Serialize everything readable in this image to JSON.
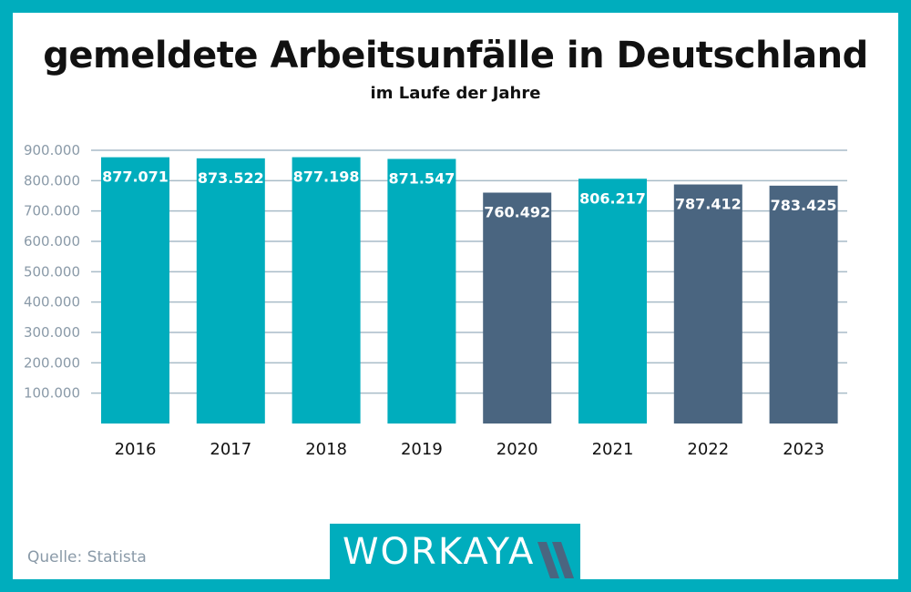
{
  "chart_data": {
    "type": "bar",
    "title": "gemeldete Arbeitsunfälle in Deutschland",
    "subtitle": "im Laufe der Jahre",
    "categories": [
      "2016",
      "2017",
      "2018",
      "2019",
      "2020",
      "2021",
      "2022",
      "2023"
    ],
    "values": [
      877071,
      873522,
      877198,
      871547,
      760492,
      806217,
      787412,
      783425
    ],
    "labels": [
      "877.071",
      "873.522",
      "877.198",
      "871.547",
      "760.492",
      "806.217",
      "787.412",
      "783.425"
    ],
    "highlight": [
      false,
      false,
      false,
      false,
      true,
      false,
      true,
      true
    ],
    "yticks": [
      100000,
      200000,
      300000,
      400000,
      500000,
      600000,
      700000,
      800000,
      900000
    ],
    "ytick_labels": [
      "100.000",
      "200.000",
      "300.000",
      "400.000",
      "500.000",
      "600.000",
      "700.000",
      "800.000",
      "900.000"
    ],
    "ylim": [
      0,
      900000
    ],
    "grid": true,
    "colors": {
      "normal": "#00adbd",
      "highlight": "#4a6580",
      "grid": "#a9bcc8",
      "tick": "#8a9aa8"
    }
  },
  "source": "Quelle: Statista",
  "logo": "WORKAYA"
}
